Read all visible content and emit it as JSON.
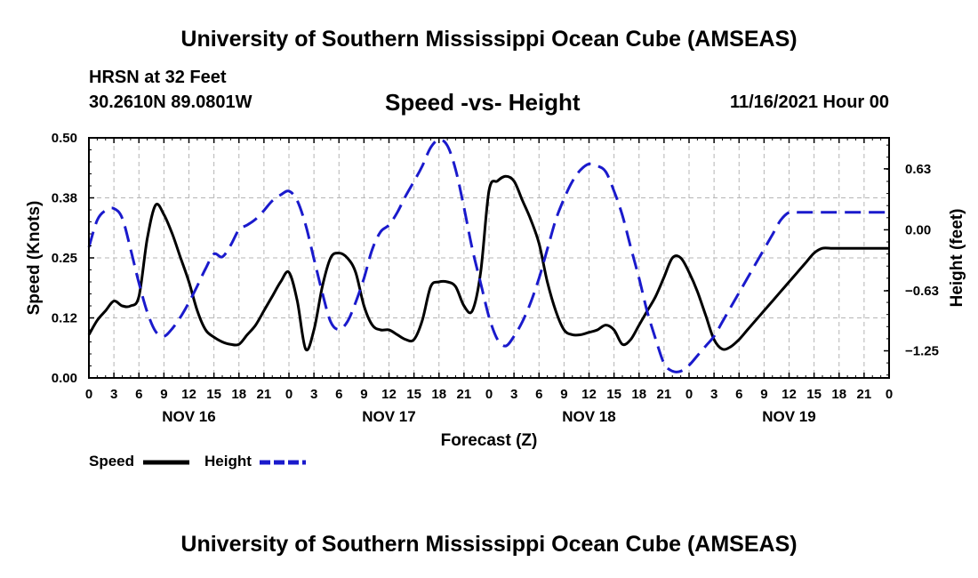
{
  "header": {
    "title": "University of Southern Mississippi Ocean Cube (AMSEAS)",
    "station": "HRSN at 32 Feet",
    "coords": "30.2610N  89.0801W",
    "subtitle": "Speed -vs- Height",
    "datetime": "11/16/2021 Hour 00"
  },
  "footer": {
    "title": "University of Southern Mississippi Ocean Cube (AMSEAS)"
  },
  "legend": {
    "speed_label": "Speed",
    "height_label": "Height"
  },
  "colors": {
    "speed": "#000000",
    "height": "#1a1acc",
    "grid": "#b4b4b4"
  },
  "chart_data": {
    "type": "line",
    "title": "Speed -vs- Height",
    "xlabel": "Forecast (Z)",
    "ylabel": "Speed (Knots)",
    "y2label": "Height (feet)",
    "xlim": [
      0,
      96
    ],
    "ylim": [
      0,
      0.5
    ],
    "y2lim": [
      -1.53,
      0.95
    ],
    "grid": true,
    "x_ticks": [
      0,
      3,
      6,
      9,
      12,
      15,
      18,
      21,
      24,
      27,
      30,
      33,
      36,
      39,
      42,
      45,
      48,
      51,
      54,
      57,
      60,
      63,
      66,
      69,
      72,
      75,
      78,
      81,
      84,
      87,
      90,
      93,
      96
    ],
    "x_tick_labels": [
      "0",
      "3",
      "6",
      "9",
      "12",
      "15",
      "18",
      "21",
      "0",
      "3",
      "6",
      "9",
      "12",
      "15",
      "18",
      "21",
      "0",
      "3",
      "6",
      "9",
      "12",
      "15",
      "18",
      "21",
      "0",
      "3",
      "6",
      "9",
      "12",
      "15",
      "18",
      "21",
      "0"
    ],
    "day_labels": [
      {
        "x": 12,
        "label": "NOV 16"
      },
      {
        "x": 36,
        "label": "NOV 17"
      },
      {
        "x": 60,
        "label": "NOV 18"
      },
      {
        "x": 84,
        "label": "NOV 19"
      }
    ],
    "y_ticks": [
      0,
      0.125,
      0.25,
      0.375,
      0.5
    ],
    "y_tick_labels": [
      "0.00",
      "0.12",
      "0.25",
      "0.38",
      "0.50"
    ],
    "y2_ticks": [
      0.63,
      0,
      -0.63,
      -1.25
    ],
    "y2_tick_labels": [
      "0.63",
      "0.00",
      "−0.63",
      "−1.25"
    ],
    "series": [
      {
        "name": "Speed",
        "axis": "left",
        "style": "solid",
        "x": [
          0,
          1,
          2,
          3,
          4,
          5,
          6,
          7,
          8,
          9,
          10,
          11,
          12,
          13,
          14,
          15,
          16,
          17,
          18,
          19,
          20,
          21,
          22,
          23,
          24,
          25,
          26,
          27,
          28,
          29,
          30,
          31,
          32,
          33,
          34,
          35,
          36,
          37,
          38,
          39,
          40,
          41,
          42,
          43,
          44,
          45,
          46,
          47,
          48,
          49,
          50,
          51,
          52,
          53,
          54,
          55,
          56,
          57,
          58,
          59,
          60,
          61,
          62,
          63,
          64,
          65,
          66,
          67,
          68,
          69,
          70,
          71,
          72,
          73,
          74,
          75,
          76,
          77,
          78,
          79,
          80,
          81,
          82,
          83,
          84,
          85,
          86,
          87,
          88,
          89,
          90,
          91,
          92,
          93,
          94,
          95,
          96
        ],
        "values": [
          0.09,
          0.12,
          0.14,
          0.16,
          0.15,
          0.15,
          0.17,
          0.29,
          0.36,
          0.34,
          0.3,
          0.25,
          0.2,
          0.14,
          0.1,
          0.085,
          0.075,
          0.07,
          0.07,
          0.09,
          0.11,
          0.14,
          0.17,
          0.2,
          0.22,
          0.16,
          0.06,
          0.1,
          0.19,
          0.25,
          0.26,
          0.25,
          0.22,
          0.15,
          0.11,
          0.1,
          0.1,
          0.09,
          0.08,
          0.08,
          0.12,
          0.19,
          0.2,
          0.2,
          0.19,
          0.15,
          0.14,
          0.22,
          0.39,
          0.41,
          0.42,
          0.41,
          0.37,
          0.33,
          0.28,
          0.2,
          0.14,
          0.1,
          0.09,
          0.09,
          0.095,
          0.1,
          0.11,
          0.1,
          0.07,
          0.08,
          0.11,
          0.14,
          0.17,
          0.21,
          0.25,
          0.25,
          0.22,
          0.18,
          0.13,
          0.08,
          0.06,
          0.065,
          0.08,
          0.1,
          0.12,
          0.14,
          0.16,
          0.18,
          0.2,
          0.22,
          0.24,
          0.26,
          0.27,
          0.27,
          0.27,
          0.27,
          0.27,
          0.27,
          0.27,
          0.27,
          0.27
        ]
      },
      {
        "name": "Height",
        "axis": "right",
        "style": "dashed",
        "x": [
          0,
          1,
          2,
          3,
          4,
          5,
          6,
          7,
          8,
          9,
          10,
          11,
          12,
          13,
          14,
          15,
          16,
          17,
          18,
          19,
          20,
          21,
          22,
          23,
          24,
          25,
          26,
          27,
          28,
          29,
          30,
          31,
          32,
          33,
          34,
          35,
          36,
          37,
          38,
          39,
          40,
          41,
          42,
          43,
          44,
          45,
          46,
          47,
          48,
          49,
          50,
          51,
          52,
          53,
          54,
          55,
          56,
          57,
          58,
          59,
          60,
          61,
          62,
          63,
          64,
          65,
          66,
          67,
          68,
          69,
          70,
          71,
          72,
          73,
          74,
          75,
          76,
          77,
          78,
          79,
          80,
          81,
          82,
          83,
          84,
          85,
          86,
          87,
          88,
          89,
          90,
          91,
          92,
          93,
          94,
          95,
          96
        ],
        "values": [
          -0.18,
          0.1,
          0.2,
          0.22,
          0.12,
          -0.2,
          -0.55,
          -0.85,
          -1.05,
          -1.1,
          -1.02,
          -0.9,
          -0.75,
          -0.58,
          -0.4,
          -0.25,
          -0.28,
          -0.16,
          0.0,
          0.05,
          0.11,
          0.2,
          0.3,
          0.36,
          0.4,
          0.3,
          0.05,
          -0.3,
          -0.65,
          -0.95,
          -1.03,
          -0.95,
          -0.75,
          -0.5,
          -0.2,
          -0.02,
          0.05,
          0.18,
          0.35,
          0.5,
          0.66,
          0.85,
          0.93,
          0.87,
          0.62,
          0.23,
          -0.2,
          -0.55,
          -0.9,
          -1.13,
          -1.2,
          -1.1,
          -0.95,
          -0.75,
          -0.5,
          -0.2,
          0.1,
          0.32,
          0.5,
          0.62,
          0.68,
          0.66,
          0.6,
          0.4,
          0.15,
          -0.18,
          -0.5,
          -0.85,
          -1.13,
          -1.38,
          -1.46,
          -1.46,
          -1.4,
          -1.3,
          -1.2,
          -1.1,
          -0.95,
          -0.8,
          -0.65,
          -0.5,
          -0.35,
          -0.2,
          -0.05,
          0.1,
          0.18,
          0.18,
          0.18,
          0.18,
          0.18,
          0.18,
          0.18,
          0.18,
          0.18,
          0.18,
          0.18,
          0.18,
          0.18
        ]
      }
    ]
  }
}
